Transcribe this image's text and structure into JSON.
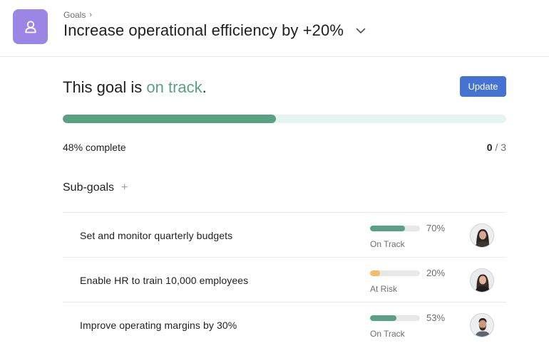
{
  "header": {
    "breadcrumb": "Goals",
    "title": "Increase operational efficiency by +20%",
    "icon": "goal-person-icon",
    "icon_color": "#9b86e6"
  },
  "status": {
    "prefix": "This goal is",
    "value": "on track",
    "suffix": ".",
    "color": "#58a182"
  },
  "update_label": "Update",
  "progress": {
    "fraction": 0.48,
    "label": "48% complete",
    "done": "0",
    "total": "/ 3",
    "track_color": "#e4f5f1",
    "fill_color": "#58a182"
  },
  "subgoals": {
    "title": "Sub-goals",
    "add_label": "+",
    "items": [
      {
        "name": "Set and monitor quarterly budgets",
        "fraction": 0.7,
        "percent": "70%",
        "status": "On Track",
        "color": "#58a182",
        "avatar": "woman-avatar-1"
      },
      {
        "name": "Enable HR to train 10,000 employees",
        "fraction": 0.2,
        "percent": "20%",
        "status": "At Risk",
        "color": "#f1bd6c",
        "avatar": "woman-avatar-2"
      },
      {
        "name": "Improve operating margins by 30%",
        "fraction": 0.53,
        "percent": "53%",
        "status": "On Track",
        "color": "#58a182",
        "avatar": "man-avatar"
      }
    ]
  }
}
